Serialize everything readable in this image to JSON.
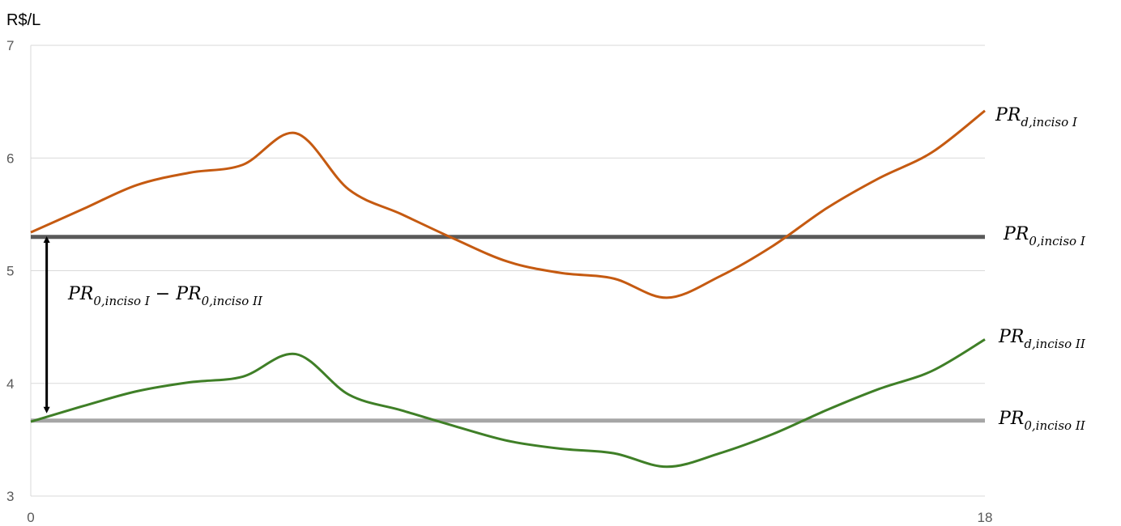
{
  "chart_data": {
    "type": "line",
    "ylabel": "R$/L",
    "xlim": [
      0,
      18
    ],
    "ylim": [
      3,
      7
    ],
    "x_ticks": [
      "0",
      "18"
    ],
    "y_ticks": [
      "3",
      "4",
      "5",
      "6",
      "7"
    ],
    "grid": true,
    "colors": {
      "pr_d_inciso_I": "#c55a11",
      "pr_d_inciso_II": "#3f7f27",
      "pr_0_inciso_I": "#595959",
      "pr_0_inciso_II": "#a6a6a6",
      "grid": "#d9d9d9",
      "arrow": "#000000"
    },
    "series": [
      {
        "key": "pr_d_inciso_I",
        "name_main": "PR",
        "name_sub": "d,inciso I",
        "x": [
          0,
          1,
          2,
          3,
          4,
          5,
          6,
          7,
          8,
          9,
          10,
          11,
          12,
          13,
          14,
          15,
          16,
          17,
          18
        ],
        "y": [
          5.34,
          5.55,
          5.76,
          5.87,
          5.94,
          6.22,
          5.72,
          5.5,
          5.28,
          5.08,
          4.98,
          4.93,
          4.76,
          4.95,
          5.22,
          5.55,
          5.82,
          6.05,
          6.42
        ]
      },
      {
        "key": "pr_d_inciso_II",
        "name_main": "PR",
        "name_sub": "d,inciso II",
        "x": [
          0,
          1,
          2,
          3,
          4,
          5,
          6,
          7,
          8,
          9,
          10,
          11,
          12,
          13,
          14,
          15,
          16,
          17,
          18
        ],
        "y": [
          3.66,
          3.8,
          3.93,
          4.01,
          4.06,
          4.26,
          3.9,
          3.76,
          3.62,
          3.49,
          3.42,
          3.38,
          3.26,
          3.38,
          3.55,
          3.76,
          3.95,
          4.11,
          4.39
        ]
      },
      {
        "key": "pr_0_inciso_I",
        "name_main": "PR",
        "name_sub": "0,inciso I",
        "x": [
          0,
          18
        ],
        "y": [
          5.3,
          5.3
        ]
      },
      {
        "key": "pr_0_inciso_II",
        "name_main": "PR",
        "name_sub": "0,inciso II",
        "x": [
          0,
          18
        ],
        "y": [
          3.67,
          3.67
        ]
      }
    ],
    "annotation": {
      "left_main": "PR",
      "left_sub": "0,inciso I",
      "operator": "−",
      "right_main": "PR",
      "right_sub": "0,inciso II",
      "arrow_x": 0.3,
      "arrow_from": 5.32,
      "arrow_to": 3.72
    }
  }
}
